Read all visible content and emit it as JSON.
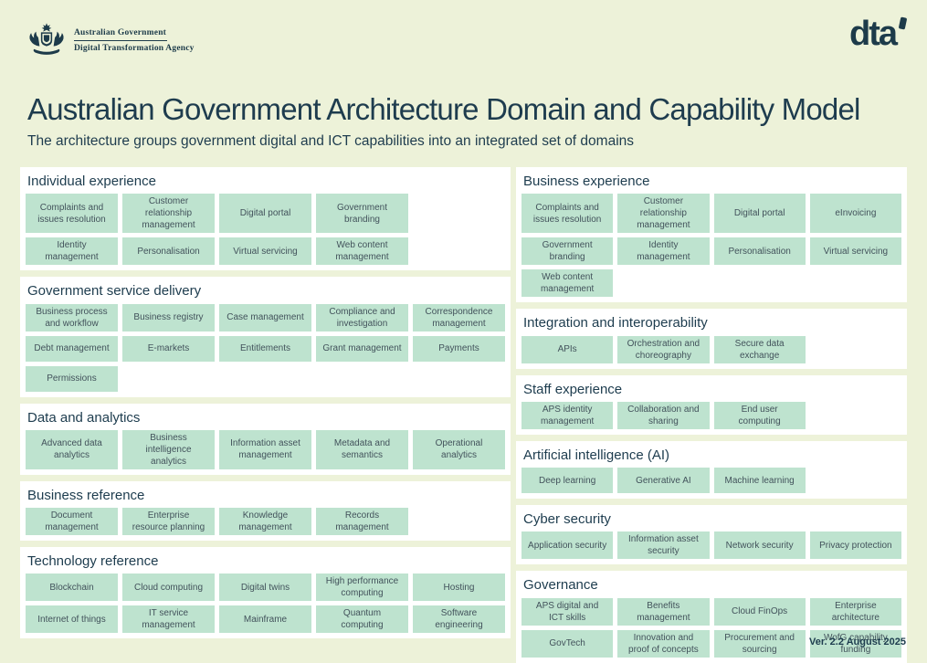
{
  "page": {
    "title": "Australian Government Architecture Domain and Capability Model",
    "subtitle": "The architecture groups government digital and ICT capabilities into an integrated set of domains",
    "version": "Ver. 2.2  August 2025"
  },
  "header": {
    "crest_line1": "Australian Government",
    "crest_line2": "Digital Transformation Agency",
    "dta_logo_text": "dta",
    "coat_of_arms_icon": "australian-coat-of-arms"
  },
  "colors": {
    "background": "#edf2d9",
    "panel": "#ffffff",
    "item_background": "#bee3cf",
    "heading_ink": "#1d3c4e",
    "item_ink": "#42525b"
  },
  "columns": {
    "left": [
      {
        "title": "Individual experience",
        "cols": 4,
        "grid_of": 5,
        "items": [
          "Complaints and issues resolution",
          "Customer relationship management",
          "Digital portal",
          "Government branding",
          "Identity management",
          "Personalisation",
          "Virtual servicing",
          "Web content management"
        ]
      },
      {
        "title": "Government service delivery",
        "cols": 5,
        "grid_of": 5,
        "items": [
          "Business process and workflow",
          "Business registry",
          "Case management",
          "Compliance and investigation",
          "Correspondence management",
          "Debt management",
          "E-markets",
          "Entitlements",
          "Grant management",
          "Payments",
          "Permissions"
        ]
      },
      {
        "title": "Data and analytics",
        "cols": 5,
        "grid_of": 5,
        "items": [
          "Advanced data analytics",
          "Business intelligence analytics",
          "Information asset management",
          "Metadata and semantics",
          "Operational analytics"
        ]
      },
      {
        "title": "Business reference",
        "cols": 5,
        "grid_of": 5,
        "items": [
          "Document management",
          "Enterprise resource planning",
          "Knowledge management",
          "Records management"
        ]
      },
      {
        "title": "Technology reference",
        "cols": 5,
        "grid_of": 5,
        "items": [
          "Blockchain",
          "Cloud computing",
          "Digital twins",
          "High performance computing",
          "Hosting",
          "Internet of things",
          "IT service management",
          "Mainframe",
          "Quantum computing",
          "Software engineering"
        ]
      }
    ],
    "right": [
      {
        "title": "Business experience",
        "cols": 4,
        "grid_of": 4,
        "items": [
          "Complaints and issues resolution",
          "Customer relationship management",
          "Digital portal",
          "eInvoicing",
          "Government branding",
          "Identity management",
          "Personalisation",
          "Virtual servicing",
          "Web content management"
        ]
      },
      {
        "title": "Integration and interoperability",
        "cols": 4,
        "grid_of": 4,
        "items": [
          "APIs",
          "Orchestration and choreography",
          "Secure data exchange"
        ]
      },
      {
        "title": "Staff experience",
        "cols": 4,
        "grid_of": 4,
        "items": [
          "APS identity management",
          "Collaboration and sharing",
          "End user computing"
        ]
      },
      {
        "title": "Artificial intelligence (AI)",
        "cols": 4,
        "grid_of": 4,
        "items": [
          "Deep learning",
          "Generative AI",
          "Machine learning"
        ]
      },
      {
        "title": "Cyber security",
        "cols": 4,
        "grid_of": 4,
        "items": [
          "Application security",
          "Information asset security",
          "Network security",
          "Privacy protection"
        ]
      },
      {
        "title": "Governance",
        "cols": 4,
        "grid_of": 4,
        "items": [
          "APS digital and ICT skills",
          "Benefits management",
          "Cloud FinOps",
          "Enterprise architecture",
          "GovTech",
          "Innovation and proof of concepts",
          "Procurement and sourcing",
          "WofG capability funding"
        ]
      }
    ]
  }
}
